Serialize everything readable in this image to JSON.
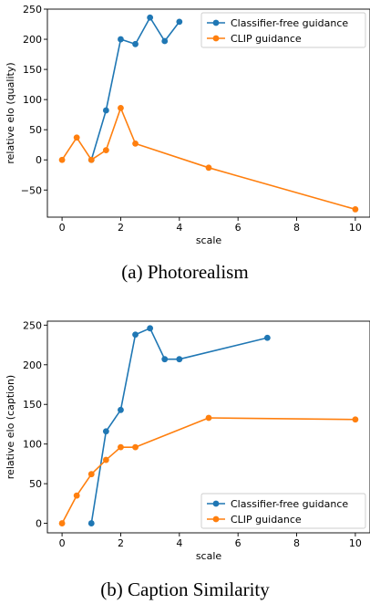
{
  "chart_data": [
    {
      "type": "line",
      "xlabel": "scale",
      "ylabel": "relative elo (quality)",
      "xlim": [
        -0.5,
        10.5
      ],
      "ylim": [
        -95,
        250
      ],
      "xticks": [
        0,
        2,
        4,
        6,
        8,
        10
      ],
      "xtick_labels": [
        "0",
        "2",
        "4",
        "6",
        "8",
        "10"
      ],
      "yticks": [
        -50,
        0,
        50,
        100,
        150,
        200,
        250
      ],
      "ytick_labels": [
        "−50",
        "0",
        "50",
        "100",
        "150",
        "200",
        "250"
      ],
      "grid": false,
      "legend_position": "upper right",
      "series": [
        {
          "name": "Classifier-free guidance",
          "color": "#1f77b4",
          "x": [
            1,
            1.5,
            2,
            2.5,
            3,
            3.5,
            4
          ],
          "y": [
            0,
            82,
            200,
            192,
            236,
            197,
            229
          ]
        },
        {
          "name": "CLIP guidance",
          "color": "#ff7f0e",
          "x": [
            0,
            0.5,
            1,
            1.5,
            2,
            2.5,
            5,
            10
          ],
          "y": [
            0,
            37,
            0,
            16,
            86,
            27,
            -13,
            -82
          ]
        }
      ]
    },
    {
      "type": "line",
      "xlabel": "scale",
      "ylabel": "relative elo (caption)",
      "xlim": [
        -0.5,
        10.5
      ],
      "ylim": [
        -12,
        255
      ],
      "xticks": [
        0,
        2,
        4,
        6,
        8,
        10
      ],
      "xtick_labels": [
        "0",
        "2",
        "4",
        "6",
        "8",
        "10"
      ],
      "yticks": [
        0,
        50,
        100,
        150,
        200,
        250
      ],
      "ytick_labels": [
        "0",
        "50",
        "100",
        "150",
        "200",
        "250"
      ],
      "grid": false,
      "legend_position": "lower right",
      "series": [
        {
          "name": "Classifier-free guidance",
          "color": "#1f77b4",
          "x": [
            1,
            1.5,
            2,
            2.5,
            3,
            3.5,
            4,
            7
          ],
          "y": [
            0,
            116,
            143,
            238,
            246,
            207,
            207,
            234
          ]
        },
        {
          "name": "CLIP guidance",
          "color": "#ff7f0e",
          "x": [
            0,
            0.5,
            1,
            1.5,
            2,
            2.5,
            5,
            10
          ],
          "y": [
            0,
            35,
            62,
            80,
            96,
            96,
            133,
            131
          ]
        }
      ]
    }
  ],
  "captions": [
    "(a)  Photorealism",
    "(b)  Caption Similarity"
  ]
}
